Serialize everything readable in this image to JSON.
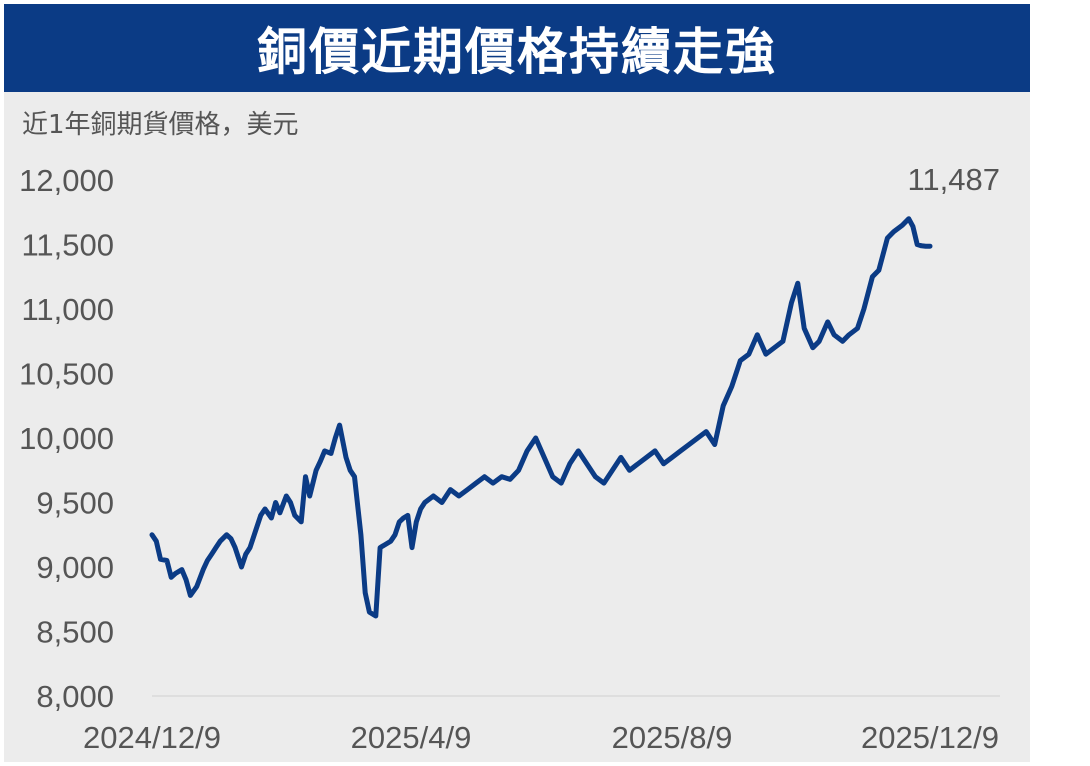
{
  "header": {
    "title": "銅價近期價格持續走強"
  },
  "subtitle": "近1年銅期貨價格，美元",
  "colors": {
    "header_bg": "#0b3b85",
    "line": "#0b3b85",
    "panel_bg": "#ececec",
    "text": "#555555"
  },
  "chart_data": {
    "type": "line",
    "title": "銅價近期價格持續走強",
    "subtitle": "近1年銅期貨價格，美元",
    "xlabel": "",
    "ylabel": "",
    "ylim": [
      8000,
      12000
    ],
    "yticks": [
      8000,
      8500,
      9000,
      9500,
      10000,
      10500,
      11000,
      11500,
      12000
    ],
    "ytick_labels": [
      "8,000",
      "8,500",
      "9,000",
      "9,500",
      "10,000",
      "10,500",
      "11,000",
      "11,500",
      "12,000"
    ],
    "xtick_labels": [
      "2024/12/9",
      "2025/4/9",
      "2025/8/9",
      "2025/12/9"
    ],
    "xtick_dates": [
      "2024-12-09",
      "2025-04-09",
      "2025-08-09",
      "2025-12-09"
    ],
    "grid": false,
    "last_value_label": "11,487",
    "series": [
      {
        "x": [
          "2024-12-09",
          "2024-12-11",
          "2024-12-13",
          "2024-12-16",
          "2024-12-18",
          "2024-12-20",
          "2024-12-23",
          "2024-12-25",
          "2024-12-27",
          "2024-12-30",
          "2025-01-02",
          "2025-01-04",
          "2025-01-06",
          "2025-01-08",
          "2025-01-10",
          "2025-01-13",
          "2025-01-15",
          "2025-01-17",
          "2025-01-20",
          "2025-01-22",
          "2025-01-24",
          "2025-01-27",
          "2025-01-29",
          "2025-01-31",
          "2025-02-03",
          "2025-02-05",
          "2025-02-07",
          "2025-02-10",
          "2025-02-12",
          "2025-02-14",
          "2025-02-17",
          "2025-02-19",
          "2025-02-21",
          "2025-02-24",
          "2025-02-26",
          "2025-02-28",
          "2025-03-03",
          "2025-03-05",
          "2025-03-07",
          "2025-03-10",
          "2025-03-12",
          "2025-03-14",
          "2025-03-17",
          "2025-03-19",
          "2025-03-21",
          "2025-03-24",
          "2025-03-26",
          "2025-03-28",
          "2025-03-31",
          "2025-04-02",
          "2025-04-04",
          "2025-04-06",
          "2025-04-08",
          "2025-04-10",
          "2025-04-12",
          "2025-04-14",
          "2025-04-16",
          "2025-04-20",
          "2025-04-24",
          "2025-04-28",
          "2025-05-02",
          "2025-05-06",
          "2025-05-10",
          "2025-05-14",
          "2025-05-18",
          "2025-05-22",
          "2025-05-26",
          "2025-05-30",
          "2025-06-03",
          "2025-06-07",
          "2025-06-11",
          "2025-06-15",
          "2025-06-19",
          "2025-06-23",
          "2025-06-27",
          "2025-07-01",
          "2025-07-05",
          "2025-07-09",
          "2025-07-13",
          "2025-07-17",
          "2025-07-21",
          "2025-07-25",
          "2025-07-29",
          "2025-08-02",
          "2025-08-06",
          "2025-08-10",
          "2025-08-14",
          "2025-08-18",
          "2025-08-22",
          "2025-08-26",
          "2025-08-30",
          "2025-09-03",
          "2025-09-07",
          "2025-09-11",
          "2025-09-15",
          "2025-09-19",
          "2025-09-23",
          "2025-09-27",
          "2025-10-01",
          "2025-10-05",
          "2025-10-08",
          "2025-10-11",
          "2025-10-15",
          "2025-10-18",
          "2025-10-22",
          "2025-10-25",
          "2025-10-29",
          "2025-11-01",
          "2025-11-05",
          "2025-11-08",
          "2025-11-12",
          "2025-11-15",
          "2025-11-19",
          "2025-11-22",
          "2025-11-26",
          "2025-11-29",
          "2025-12-01",
          "2025-12-03",
          "2025-12-05",
          "2025-12-07",
          "2025-12-09"
        ],
        "y": [
          9250,
          9200,
          9060,
          9050,
          8920,
          8950,
          8980,
          8900,
          8780,
          8850,
          8980,
          9050,
          9100,
          9150,
          9200,
          9250,
          9220,
          9150,
          9000,
          9100,
          9150,
          9300,
          9400,
          9450,
          9380,
          9500,
          9420,
          9550,
          9500,
          9400,
          9350,
          9700,
          9550,
          9750,
          9820,
          9900,
          9880,
          10000,
          10100,
          9850,
          9750,
          9700,
          9250,
          8800,
          8650,
          8620,
          9150,
          9170,
          9200,
          9250,
          9350,
          9380,
          9400,
          9150,
          9350,
          9450,
          9500,
          9550,
          9500,
          9600,
          9550,
          9600,
          9650,
          9700,
          9650,
          9700,
          9680,
          9750,
          9900,
          10000,
          9850,
          9700,
          9650,
          9800,
          9900,
          9800,
          9700,
          9650,
          9750,
          9850,
          9750,
          9800,
          9850,
          9900,
          9800,
          9850,
          9900,
          9950,
          10000,
          10050,
          9950,
          10250,
          10400,
          10600,
          10650,
          10800,
          10650,
          10700,
          10750,
          11050,
          11200,
          10850,
          10700,
          10750,
          10900,
          10800,
          10750,
          10800,
          10850,
          11000,
          11250,
          11300,
          11550,
          11600,
          11650,
          11700,
          11640,
          11500,
          11490,
          11487,
          11487
        ],
        "color": "#0b3b85"
      }
    ]
  }
}
